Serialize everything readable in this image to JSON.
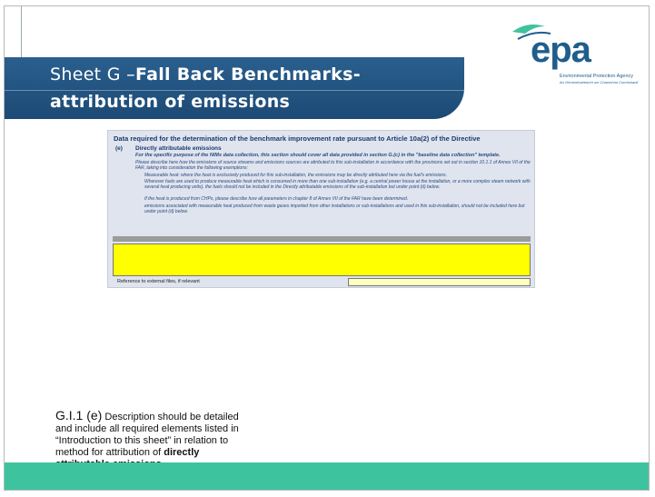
{
  "header": {
    "title_prefix": "Sheet G –",
    "title_bold_1": "Fall Back Benchmarks-",
    "title_bold_2": "attribution of emissions"
  },
  "logo": {
    "name": "epa",
    "line1": "Environmental Protection Agency",
    "line2": "An Ghníomhaireacht um Chaomhnú Comhshaoil"
  },
  "sheet": {
    "heading": "Data required for the determination of the benchmark improvement rate pursuant to Article 10a(2) of the Directive",
    "item": "(e)",
    "item_title": "Directly attributable emissions",
    "notice": "For the specific purpose of the NIMs data collection, this section should cover all data provided in section G.(c) in the \"baseline data collection\" template.",
    "intro": "Please describe here how the emissions of source streams and emissions sources are attributed to this sub-installation in accordance with the provisions set out in section 10.1.1 of Annex VII of the FAR, taking into consideration the following exemptions:",
    "bullet1": "Measurable heat: where the heat is exclusively produced for this sub-installation, the emissions may be directly attributed here via the fuel's emissions.",
    "bullet1_more": "Wherever fuels are used to produce measurable heat which is consumed in more than one sub-installation (e.g. a central power house at the installation, or a more complex steam network with several heat producing units), the fuels should not be included in the Directly attributable emissions of the sub-installation but under point (d) below.",
    "chp": "If the heat is produced from CHPs, please describe how all parameters in chapter 8 of Annex VII of the FAR have been determined.",
    "bullet2": "emissions associated with measurable heat produced from waste gases imported from other installations or sub-installations and used in this sub-installation, should not be included here but under point (d) below.",
    "reference": "Reference to external files, if relevant"
  },
  "body": {
    "code": "G.I.1 (e)",
    "text": " Description should be detailed and include all required elements listed in “Introduction to this sheet” in relation to method for attribution of ",
    "bold": "directly attributable emissions."
  }
}
